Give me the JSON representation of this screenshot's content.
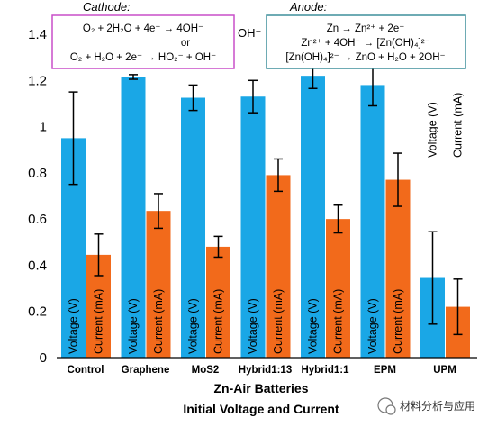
{
  "chart_data": {
    "type": "bar",
    "categories": [
      "Control",
      "Graphene",
      "MoS2",
      "Hybrid1:13",
      "Hybrid1:1",
      "EPM",
      "UPM"
    ],
    "series": [
      {
        "name": "Voltage (V)",
        "color": "#1aa7e6",
        "values": [
          0.95,
          1.215,
          1.125,
          1.13,
          1.22,
          1.18,
          0.345
        ],
        "errors": [
          0.2,
          0.01,
          0.055,
          0.07,
          0.055,
          0.09,
          0.2
        ]
      },
      {
        "name": "Current (mA)",
        "color": "#f26a1b",
        "values": [
          0.445,
          0.635,
          0.48,
          0.79,
          0.6,
          0.77,
          0.22
        ]
      }
    ],
    "errors_current": [
      0.09,
      0.075,
      0.045,
      0.07,
      0.06,
      0.115,
      0.12
    ],
    "ylim": [
      0,
      1.4
    ],
    "yticks": [
      "0",
      "0.2",
      "0.4",
      "0.6",
      "0.8",
      "1",
      "1.2",
      "1.4"
    ],
    "xlabel": "Zn-Air Batteries",
    "title": "Initial Voltage and Current",
    "grid": false
  },
  "cathode": {
    "title": "Cathode:",
    "eq1": "O₂ + 2H₂O + 4e⁻ → 4OH⁻",
    "or": "or",
    "eq2": "O₂ + H₂O + 2e⁻ → HO₂⁻ + OH⁻"
  },
  "anode": {
    "title": "Anode:",
    "eq1": "Zn → Zn²⁺ + 2e⁻",
    "eq2": "Zn²⁺ + 4OH⁻ → [Zn(OH)₄]²⁻",
    "eq3": "[Zn(OH)₄]²⁻ → ZnO + H₂O + 2OH⁻"
  },
  "oh_label": "OH⁻",
  "watermark": "材料分析与应用",
  "colors": {
    "cathode_border": "#c84fc8",
    "anode_border": "#3f8f9c"
  }
}
